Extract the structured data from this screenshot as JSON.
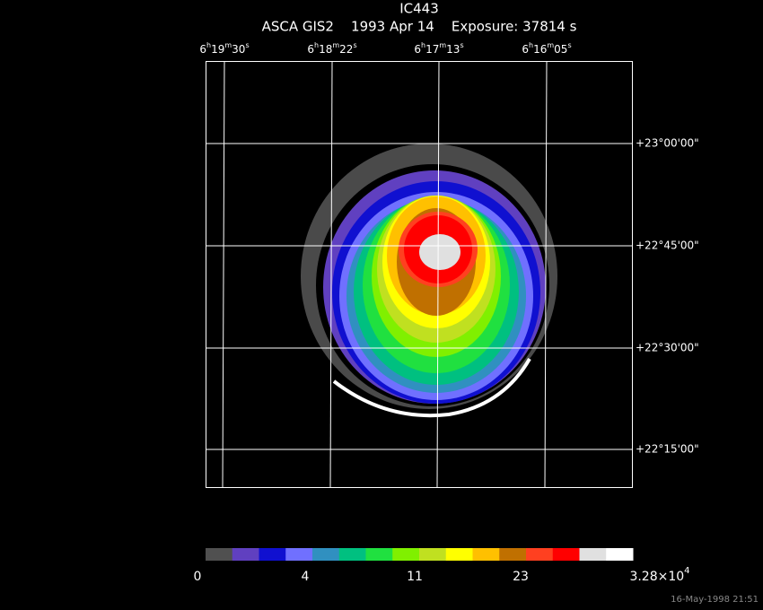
{
  "header": {
    "title": "IC443",
    "subtitle": "ASCA GIS2    1993 Apr 14    Exposure: 37814 s"
  },
  "ra_labels": [
    [
      "6",
      "h",
      "19",
      "m",
      "30",
      "s"
    ],
    [
      "6",
      "h",
      "18",
      "m",
      "22",
      "s"
    ],
    [
      "6",
      "h",
      "17",
      "m",
      "13",
      "s"
    ],
    [
      "6",
      "h",
      "16",
      "m",
      "05",
      "s"
    ]
  ],
  "dec_labels": [
    "+23°00'00\"",
    "+22°45'00\"",
    "+22°30'00\"",
    "+22°15'00\""
  ],
  "colorbar": {
    "colors": [
      "#505050",
      "#6040c0",
      "#1010d0",
      "#7070ff",
      "#3090c0",
      "#00c080",
      "#20e040",
      "#80f000",
      "#c0e020",
      "#ffff00",
      "#ffc000",
      "#c07000",
      "#ff4020",
      "#ff0000",
      "#e0e0e0",
      "#ffffff"
    ],
    "labels": [
      "0",
      "4",
      "11",
      "23"
    ],
    "max_label": {
      "base": "3.28×10",
      "exponent": "4"
    }
  },
  "timestamp": "16-May-1998 21:51"
}
